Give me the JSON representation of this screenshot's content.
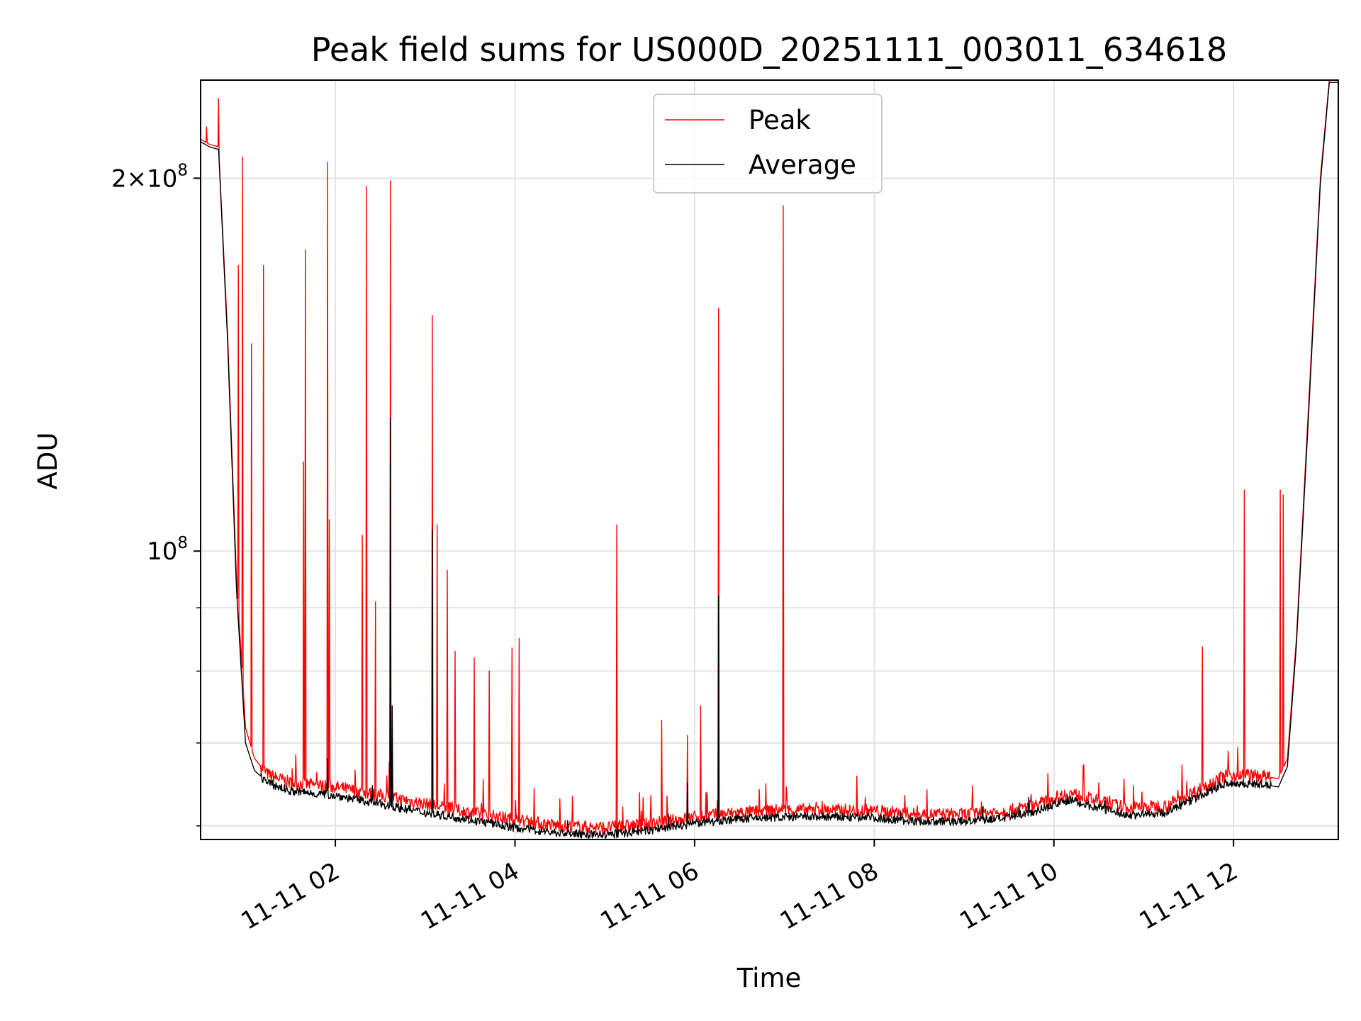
{
  "chart_data": {
    "type": "line",
    "title": "Peak field sums for US000D_20251111_003011_634618",
    "xlabel": "Time",
    "ylabel": "ADU",
    "y_scale": "log",
    "ylim": [
      58500000,
      240000000
    ],
    "xlim": [
      "2025-11-11 00:30",
      "2025-11-11 13:10"
    ],
    "grid": true,
    "legend_position": "upper center",
    "x_tick_labels": [
      "11-11 02",
      "11-11 04",
      "11-11 06",
      "11-11 08",
      "11-11 10",
      "11-11 12"
    ],
    "x_ticks": [
      "2025-11-11 02:00",
      "2025-11-11 04:00",
      "2025-11-11 06:00",
      "2025-11-11 08:00",
      "2025-11-11 10:00",
      "2025-11-11 12:00"
    ],
    "y_tick_labels": [
      {
        "value": 100000000,
        "mantissa": "",
        "base": "10",
        "exp": "8"
      },
      {
        "value": 200000000,
        "mantissa": "2",
        "base": "10",
        "exp": "8"
      }
    ],
    "y_minor_ticks": [
      60000000,
      70000000,
      80000000,
      90000000
    ],
    "series": [
      {
        "name": "Peak",
        "color": "#ff0000",
        "baseline": [
          [
            "2025-11-11 00:30",
            215000000
          ],
          [
            "2025-11-11 00:36",
            213000000
          ],
          [
            "2025-11-11 00:42",
            212000000
          ],
          [
            "2025-11-11 00:48",
            150000000
          ],
          [
            "2025-11-11 00:54",
            95000000
          ],
          [
            "2025-11-11 01:00",
            72000000
          ],
          [
            "2025-11-11 01:06",
            68000000
          ],
          [
            "2025-11-11 01:15",
            66000000
          ],
          [
            "2025-11-11 01:30",
            65000000
          ],
          [
            "2025-11-11 02:00",
            64500000
          ],
          [
            "2025-11-11 02:30",
            63500000
          ],
          [
            "2025-11-11 03:00",
            62500000
          ],
          [
            "2025-11-11 03:30",
            61500000
          ],
          [
            "2025-11-11 04:00",
            60700000
          ],
          [
            "2025-11-11 04:30",
            60000000
          ],
          [
            "2025-11-11 05:00",
            59800000
          ],
          [
            "2025-11-11 05:30",
            60200000
          ],
          [
            "2025-11-11 06:00",
            61000000
          ],
          [
            "2025-11-11 06:30",
            61500000
          ],
          [
            "2025-11-11 07:00",
            61800000
          ],
          [
            "2025-11-11 07:30",
            61800000
          ],
          [
            "2025-11-11 08:00",
            61700000
          ],
          [
            "2025-11-11 08:30",
            61300000
          ],
          [
            "2025-11-11 09:00",
            61300000
          ],
          [
            "2025-11-11 09:30",
            61700000
          ],
          [
            "2025-11-11 09:50",
            62500000
          ],
          [
            "2025-11-11 10:10",
            63800000
          ],
          [
            "2025-11-11 10:30",
            62800000
          ],
          [
            "2025-11-11 10:50",
            62000000
          ],
          [
            "2025-11-11 11:15",
            62300000
          ],
          [
            "2025-11-11 11:35",
            64000000
          ],
          [
            "2025-11-11 11:55",
            66000000
          ],
          [
            "2025-11-11 12:20",
            65800000
          ],
          [
            "2025-11-11 12:30",
            65500000
          ],
          [
            "2025-11-11 12:36",
            68000000
          ],
          [
            "2025-11-11 12:42",
            85000000
          ],
          [
            "2025-11-11 12:50",
            130000000
          ],
          [
            "2025-11-11 12:58",
            200000000
          ],
          [
            "2025-11-11 13:04",
            240000000
          ],
          [
            "2025-11-11 13:10",
            240000000
          ]
        ],
        "spikes": [
          [
            "2025-11-11 00:34",
            220000000
          ],
          [
            "2025-11-11 00:42",
            232000000
          ],
          [
            "2025-11-11 00:55",
            170000000
          ],
          [
            "2025-11-11 00:58",
            208000000
          ],
          [
            "2025-11-11 01:04",
            147000000
          ],
          [
            "2025-11-11 01:12",
            170000000
          ],
          [
            "2025-11-11 01:39",
            118000000
          ],
          [
            "2025-11-11 01:40",
            175000000
          ],
          [
            "2025-11-11 01:55",
            206000000
          ],
          [
            "2025-11-11 01:56",
            106000000
          ],
          [
            "2025-11-11 02:18",
            103000000
          ],
          [
            "2025-11-11 02:21",
            197000000
          ],
          [
            "2025-11-11 02:27",
            91000000
          ],
          [
            "2025-11-11 02:37",
            199000000
          ],
          [
            "2025-11-11 03:05",
            155000000
          ],
          [
            "2025-11-11 03:08",
            105000000
          ],
          [
            "2025-11-11 03:15",
            96500000
          ],
          [
            "2025-11-11 03:20",
            83000000
          ],
          [
            "2025-11-11 03:33",
            82000000
          ],
          [
            "2025-11-11 03:43",
            80000000
          ],
          [
            "2025-11-11 03:58",
            83500000
          ],
          [
            "2025-11-11 04:03",
            85000000
          ],
          [
            "2025-11-11 05:08",
            105000000
          ],
          [
            "2025-11-11 05:38",
            73000000
          ],
          [
            "2025-11-11 05:55",
            71000000
          ],
          [
            "2025-11-11 06:04",
            75000000
          ],
          [
            "2025-11-11 06:16",
            157000000
          ],
          [
            "2025-11-11 06:59",
            190000000
          ],
          [
            "2025-11-11 11:39",
            83700000
          ],
          [
            "2025-11-11 12:07",
            112000000
          ],
          [
            "2025-11-11 12:31",
            112000000
          ],
          [
            "2025-11-11 12:33",
            111000000
          ]
        ]
      },
      {
        "name": "Average",
        "color": "#000000",
        "baseline": [
          [
            "2025-11-11 00:30",
            214000000
          ],
          [
            "2025-11-11 00:36",
            212000000
          ],
          [
            "2025-11-11 00:42",
            211000000
          ],
          [
            "2025-11-11 00:48",
            148000000
          ],
          [
            "2025-11-11 00:54",
            93000000
          ],
          [
            "2025-11-11 01:00",
            70000000
          ],
          [
            "2025-11-11 01:06",
            66500000
          ],
          [
            "2025-11-11 01:15",
            65000000
          ],
          [
            "2025-11-11 01:30",
            64000000
          ],
          [
            "2025-11-11 02:00",
            63500000
          ],
          [
            "2025-11-11 02:30",
            62500000
          ],
          [
            "2025-11-11 03:00",
            61500000
          ],
          [
            "2025-11-11 03:30",
            60700000
          ],
          [
            "2025-11-11 04:00",
            59800000
          ],
          [
            "2025-11-11 04:30",
            59200000
          ],
          [
            "2025-11-11 05:00",
            59000000
          ],
          [
            "2025-11-11 05:30",
            59500000
          ],
          [
            "2025-11-11 06:00",
            60300000
          ],
          [
            "2025-11-11 06:30",
            60800000
          ],
          [
            "2025-11-11 07:00",
            61000000
          ],
          [
            "2025-11-11 07:30",
            61000000
          ],
          [
            "2025-11-11 08:00",
            60900000
          ],
          [
            "2025-11-11 08:30",
            60500000
          ],
          [
            "2025-11-11 09:00",
            60500000
          ],
          [
            "2025-11-11 09:30",
            60900000
          ],
          [
            "2025-11-11 09:50",
            61800000
          ],
          [
            "2025-11-11 10:10",
            63000000
          ],
          [
            "2025-11-11 10:30",
            62000000
          ],
          [
            "2025-11-11 10:50",
            61200000
          ],
          [
            "2025-11-11 11:15",
            61500000
          ],
          [
            "2025-11-11 11:35",
            63200000
          ],
          [
            "2025-11-11 11:55",
            65000000
          ],
          [
            "2025-11-11 12:20",
            64800000
          ],
          [
            "2025-11-11 12:30",
            64500000
          ],
          [
            "2025-11-11 12:36",
            67000000
          ],
          [
            "2025-11-11 12:42",
            84000000
          ],
          [
            "2025-11-11 12:50",
            128000000
          ],
          [
            "2025-11-11 12:58",
            198000000
          ],
          [
            "2025-11-11 13:04",
            239000000
          ],
          [
            "2025-11-11 13:10",
            239000000
          ]
        ],
        "spikes": [
          [
            "2025-11-11 01:55",
            68000000
          ],
          [
            "2025-11-11 02:37",
            128000000
          ],
          [
            "2025-11-11 02:38",
            75000000
          ],
          [
            "2025-11-11 03:05",
            104000000
          ],
          [
            "2025-11-11 06:16",
            92000000
          ],
          [
            "2025-11-11 05:55",
            65000000
          ]
        ]
      }
    ]
  }
}
